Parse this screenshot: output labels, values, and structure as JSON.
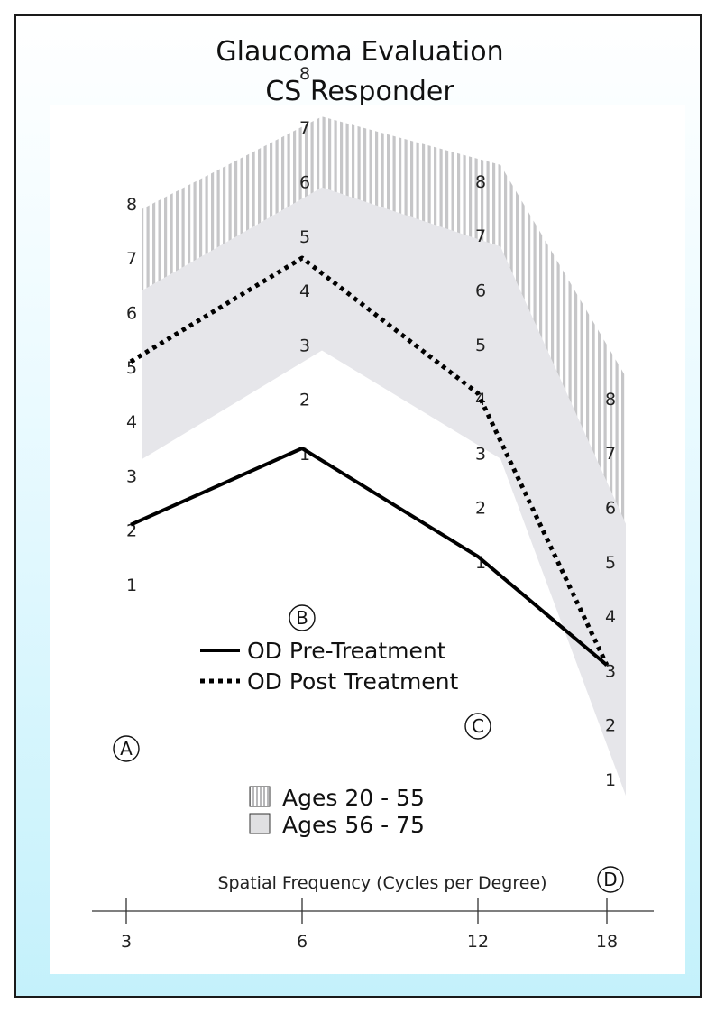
{
  "title": [
    "Glaucoma Evaluation",
    "CS Responder"
  ],
  "chart_data": {
    "type": "line",
    "x": [
      3,
      6,
      12,
      18
    ],
    "xlabel": "Spatial Frequency (Cycles per Degree)",
    "x_tick_labels": [
      "3",
      "6",
      "12",
      "18"
    ],
    "column_markers": [
      "A",
      "B",
      "C",
      "D"
    ],
    "column_scale_labels": [
      "1",
      "2",
      "3",
      "4",
      "5",
      "6",
      "7",
      "8"
    ],
    "ylim": [
      1,
      8
    ],
    "series": [
      {
        "name": "OD Pre-Treatment",
        "style": "solid",
        "values": [
          2,
          1,
          1,
          3
        ]
      },
      {
        "name": "OD Post Treatment",
        "style": "dotted",
        "values": [
          5,
          4.5,
          4,
          3
        ]
      }
    ],
    "bands": [
      {
        "name": "Ages 20 - 55",
        "pattern": "vertical-stripes",
        "lower": [
          4.7,
          3.3,
          5,
          2.3
        ],
        "upper": [
          7.8,
          7.1,
          8.2,
          8.3
        ]
      },
      {
        "name": "Ages 56 - 75",
        "pattern": "solid-gray",
        "lower": [
          3.2,
          2.8,
          2.8,
          0.6
        ],
        "upper": [
          6.3,
          5.8,
          6.7,
          5.6
        ]
      }
    ],
    "legend_placement": "center",
    "colors": {
      "band_gray": "#e6e6ea",
      "stripe": "#c6c6c8",
      "line": "#000000"
    }
  }
}
